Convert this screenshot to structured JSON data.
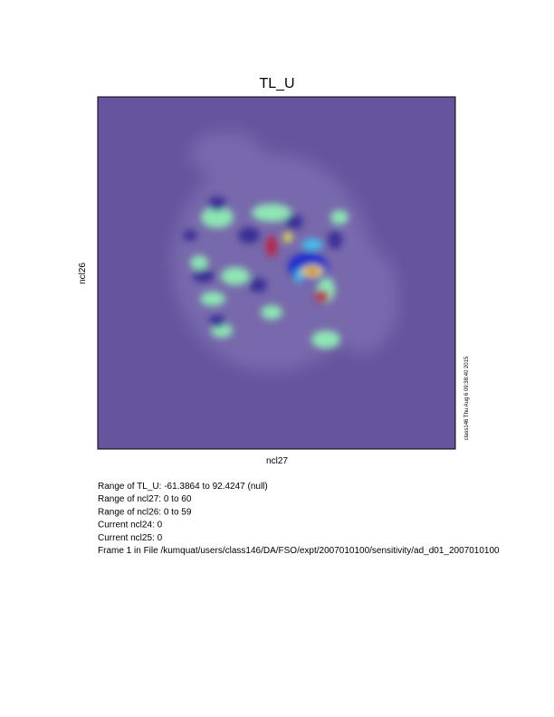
{
  "chart_data": {
    "type": "heatmap",
    "title": "TL_U",
    "x_label": "ncl27",
    "y_label": "ncl26"
  },
  "info": [
    "Range of TL_U: -61.3864 to 92.4247 (null)",
    "Range of ncl27: 0 to 60",
    "Range of ncl26: 0 to 59",
    "Current ncl24: 0",
    "Current ncl25: 0",
    "Frame 1 in File /kumquat/users/class146/DA/FSO/expt/2007010100/sensitivity/ad_d01_2007010100"
  ],
  "timestamp": "class146 Thu Aug  6 09:38:40 2015"
}
